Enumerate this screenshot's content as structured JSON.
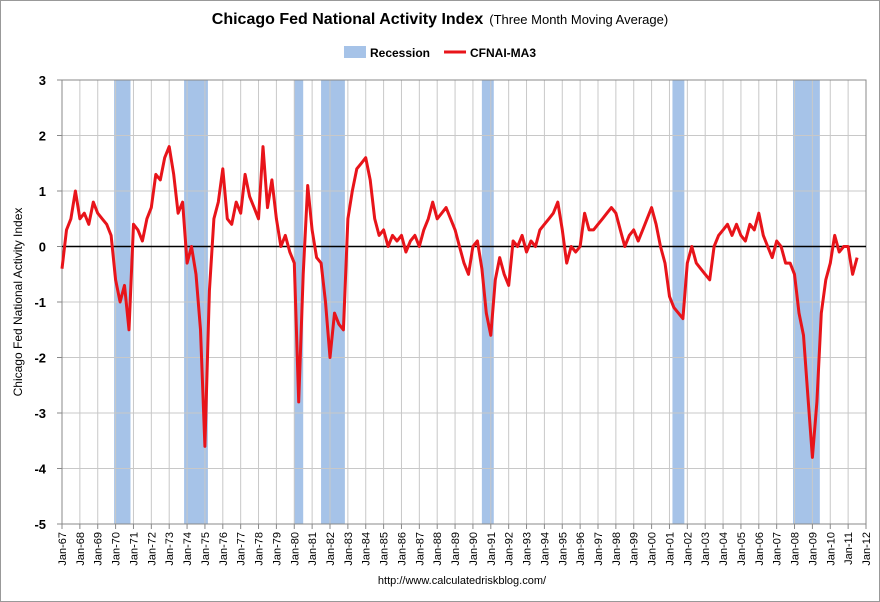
{
  "chart_data": {
    "type": "line",
    "title": "Chicago Fed National Activity Index",
    "subtitle": "(Three Month Moving Average)",
    "y_label": "Chicago Fed National Activity Index",
    "source": "http://www.calculatedriskblog.com/",
    "x": [
      "Jan-67",
      "Apr-67",
      "Jul-67",
      "Oct-67",
      "Jan-68",
      "Apr-68",
      "Jul-68",
      "Oct-68",
      "Jan-69",
      "Apr-69",
      "Jul-69",
      "Oct-69",
      "Jan-70",
      "Apr-70",
      "Jul-70",
      "Oct-70",
      "Jan-71",
      "Apr-71",
      "Jul-71",
      "Oct-71",
      "Jan-72",
      "Apr-72",
      "Jul-72",
      "Oct-72",
      "Jan-73",
      "Apr-73",
      "Jul-73",
      "Oct-73",
      "Jan-74",
      "Apr-74",
      "Jul-74",
      "Oct-74",
      "Jan-75",
      "Apr-75",
      "Jul-75",
      "Oct-75",
      "Jan-76",
      "Apr-76",
      "Jul-76",
      "Oct-76",
      "Jan-77",
      "Apr-77",
      "Jul-77",
      "Oct-77",
      "Jan-78",
      "Apr-78",
      "Jul-78",
      "Oct-78",
      "Jan-79",
      "Apr-79",
      "Jul-79",
      "Oct-79",
      "Jan-80",
      "Apr-80",
      "Jul-80",
      "Oct-80",
      "Jan-81",
      "Apr-81",
      "Jul-81",
      "Oct-81",
      "Jan-82",
      "Apr-82",
      "Jul-82",
      "Oct-82",
      "Jan-83",
      "Apr-83",
      "Jul-83",
      "Oct-83",
      "Jan-84",
      "Apr-84",
      "Jul-84",
      "Oct-84",
      "Jan-85",
      "Apr-85",
      "Jul-85",
      "Oct-85",
      "Jan-86",
      "Apr-86",
      "Jul-86",
      "Oct-86",
      "Jan-87",
      "Apr-87",
      "Jul-87",
      "Oct-87",
      "Jan-88",
      "Apr-88",
      "Jul-88",
      "Oct-88",
      "Jan-89",
      "Apr-89",
      "Jul-89",
      "Oct-89",
      "Jan-90",
      "Apr-90",
      "Jul-90",
      "Oct-90",
      "Jan-91",
      "Apr-91",
      "Jul-91",
      "Oct-91",
      "Jan-92",
      "Apr-92",
      "Jul-92",
      "Oct-92",
      "Jan-93",
      "Apr-93",
      "Jul-93",
      "Oct-93",
      "Jan-94",
      "Apr-94",
      "Jul-94",
      "Oct-94",
      "Jan-95",
      "Apr-95",
      "Jul-95",
      "Oct-95",
      "Jan-96",
      "Apr-96",
      "Jul-96",
      "Oct-96",
      "Jan-97",
      "Apr-97",
      "Jul-97",
      "Oct-97",
      "Jan-98",
      "Apr-98",
      "Jul-98",
      "Oct-98",
      "Jan-99",
      "Apr-99",
      "Jul-99",
      "Oct-99",
      "Jan-00",
      "Apr-00",
      "Jul-00",
      "Oct-00",
      "Jan-01",
      "Apr-01",
      "Jul-01",
      "Oct-01",
      "Jan-02",
      "Apr-02",
      "Jul-02",
      "Oct-02",
      "Jan-03",
      "Apr-03",
      "Jul-03",
      "Oct-03",
      "Jan-04",
      "Apr-04",
      "Jul-04",
      "Oct-04",
      "Jan-05",
      "Apr-05",
      "Jul-05",
      "Oct-05",
      "Jan-06",
      "Apr-06",
      "Jul-06",
      "Oct-06",
      "Jan-07",
      "Apr-07",
      "Jul-07",
      "Oct-07",
      "Jan-08",
      "Apr-08",
      "Jul-08",
      "Oct-08",
      "Jan-09",
      "Apr-09",
      "Jul-09",
      "Oct-09",
      "Jan-10",
      "Apr-10",
      "Jul-10",
      "Oct-10",
      "Jan-11",
      "Apr-11",
      "Jul-11"
    ],
    "series": [
      {
        "name": "CFNAI-MA3",
        "color": "#e8141a",
        "values": [
          -0.4,
          0.3,
          0.5,
          1.0,
          0.5,
          0.6,
          0.4,
          0.8,
          0.6,
          0.5,
          0.4,
          0.2,
          -0.6,
          -1.0,
          -0.7,
          -1.5,
          0.4,
          0.3,
          0.1,
          0.5,
          0.7,
          1.3,
          1.2,
          1.6,
          1.8,
          1.3,
          0.6,
          0.8,
          -0.3,
          0.0,
          -0.5,
          -1.5,
          -3.6,
          -0.8,
          0.5,
          0.8,
          1.4,
          0.5,
          0.4,
          0.8,
          0.6,
          1.3,
          0.9,
          0.7,
          0.5,
          1.8,
          0.7,
          1.2,
          0.5,
          0.0,
          0.2,
          -0.1,
          -0.3,
          -2.8,
          -0.5,
          1.1,
          0.3,
          -0.2,
          -0.3,
          -1.0,
          -2.0,
          -1.2,
          -1.4,
          -1.5,
          0.5,
          1.0,
          1.4,
          1.5,
          1.6,
          1.2,
          0.5,
          0.2,
          0.3,
          0.0,
          0.2,
          0.1,
          0.2,
          -0.1,
          0.1,
          0.2,
          0.0,
          0.3,
          0.5,
          0.8,
          0.5,
          0.6,
          0.7,
          0.5,
          0.3,
          0.0,
          -0.3,
          -0.5,
          0.0,
          0.1,
          -0.4,
          -1.2,
          -1.6,
          -0.6,
          -0.2,
          -0.5,
          -0.7,
          0.1,
          0.0,
          0.2,
          -0.1,
          0.1,
          0.0,
          0.3,
          0.4,
          0.5,
          0.6,
          0.8,
          0.3,
          -0.3,
          0.0,
          -0.1,
          0.0,
          0.6,
          0.3,
          0.3,
          0.4,
          0.5,
          0.6,
          0.7,
          0.6,
          0.3,
          0.0,
          0.2,
          0.3,
          0.1,
          0.3,
          0.5,
          0.7,
          0.4,
          0.0,
          -0.3,
          -0.9,
          -1.1,
          -1.2,
          -1.3,
          -0.3,
          0.0,
          -0.3,
          -0.4,
          -0.5,
          -0.6,
          0.0,
          0.2,
          0.3,
          0.4,
          0.2,
          0.4,
          0.2,
          0.1,
          0.4,
          0.3,
          0.6,
          0.2,
          0.0,
          -0.2,
          0.1,
          0.0,
          -0.3,
          -0.3,
          -0.5,
          -1.2,
          -1.6,
          -2.7,
          -3.8,
          -2.8,
          -1.2,
          -0.6,
          -0.3,
          0.2,
          -0.1,
          0.0,
          0.0,
          -0.5,
          -0.2
        ]
      }
    ],
    "recessions": {
      "name": "Recession",
      "color": "#a6c3e8",
      "periods": [
        [
          "Dec-69",
          "Nov-70"
        ],
        [
          "Nov-73",
          "Mar-75"
        ],
        [
          "Jan-80",
          "Jul-80"
        ],
        [
          "Jul-81",
          "Nov-82"
        ],
        [
          "Jul-90",
          "Mar-91"
        ],
        [
          "Mar-01",
          "Nov-01"
        ],
        [
          "Dec-07",
          "Jun-09"
        ]
      ]
    },
    "xlim": [
      "Jan-67",
      "Jan-12"
    ],
    "xticks": [
      "Jan-67",
      "Jan-68",
      "Jan-69",
      "Jan-70",
      "Jan-71",
      "Jan-72",
      "Jan-73",
      "Jan-74",
      "Jan-75",
      "Jan-76",
      "Jan-77",
      "Jan-78",
      "Jan-79",
      "Jan-80",
      "Jan-81",
      "Jan-82",
      "Jan-83",
      "Jan-84",
      "Jan-85",
      "Jan-86",
      "Jan-87",
      "Jan-88",
      "Jan-89",
      "Jan-90",
      "Jan-91",
      "Jan-92",
      "Jan-93",
      "Jan-94",
      "Jan-95",
      "Jan-96",
      "Jan-97",
      "Jan-98",
      "Jan-99",
      "Jan-00",
      "Jan-01",
      "Jan-02",
      "Jan-03",
      "Jan-04",
      "Jan-05",
      "Jan-06",
      "Jan-07",
      "Jan-08",
      "Jan-09",
      "Jan-10",
      "Jan-11",
      "Jan-12"
    ],
    "ylim": [
      -5,
      3
    ],
    "yticks": [
      -5,
      -4,
      -3,
      -2,
      -1,
      0,
      1,
      2,
      3
    ],
    "grid": true,
    "legend": "top"
  }
}
